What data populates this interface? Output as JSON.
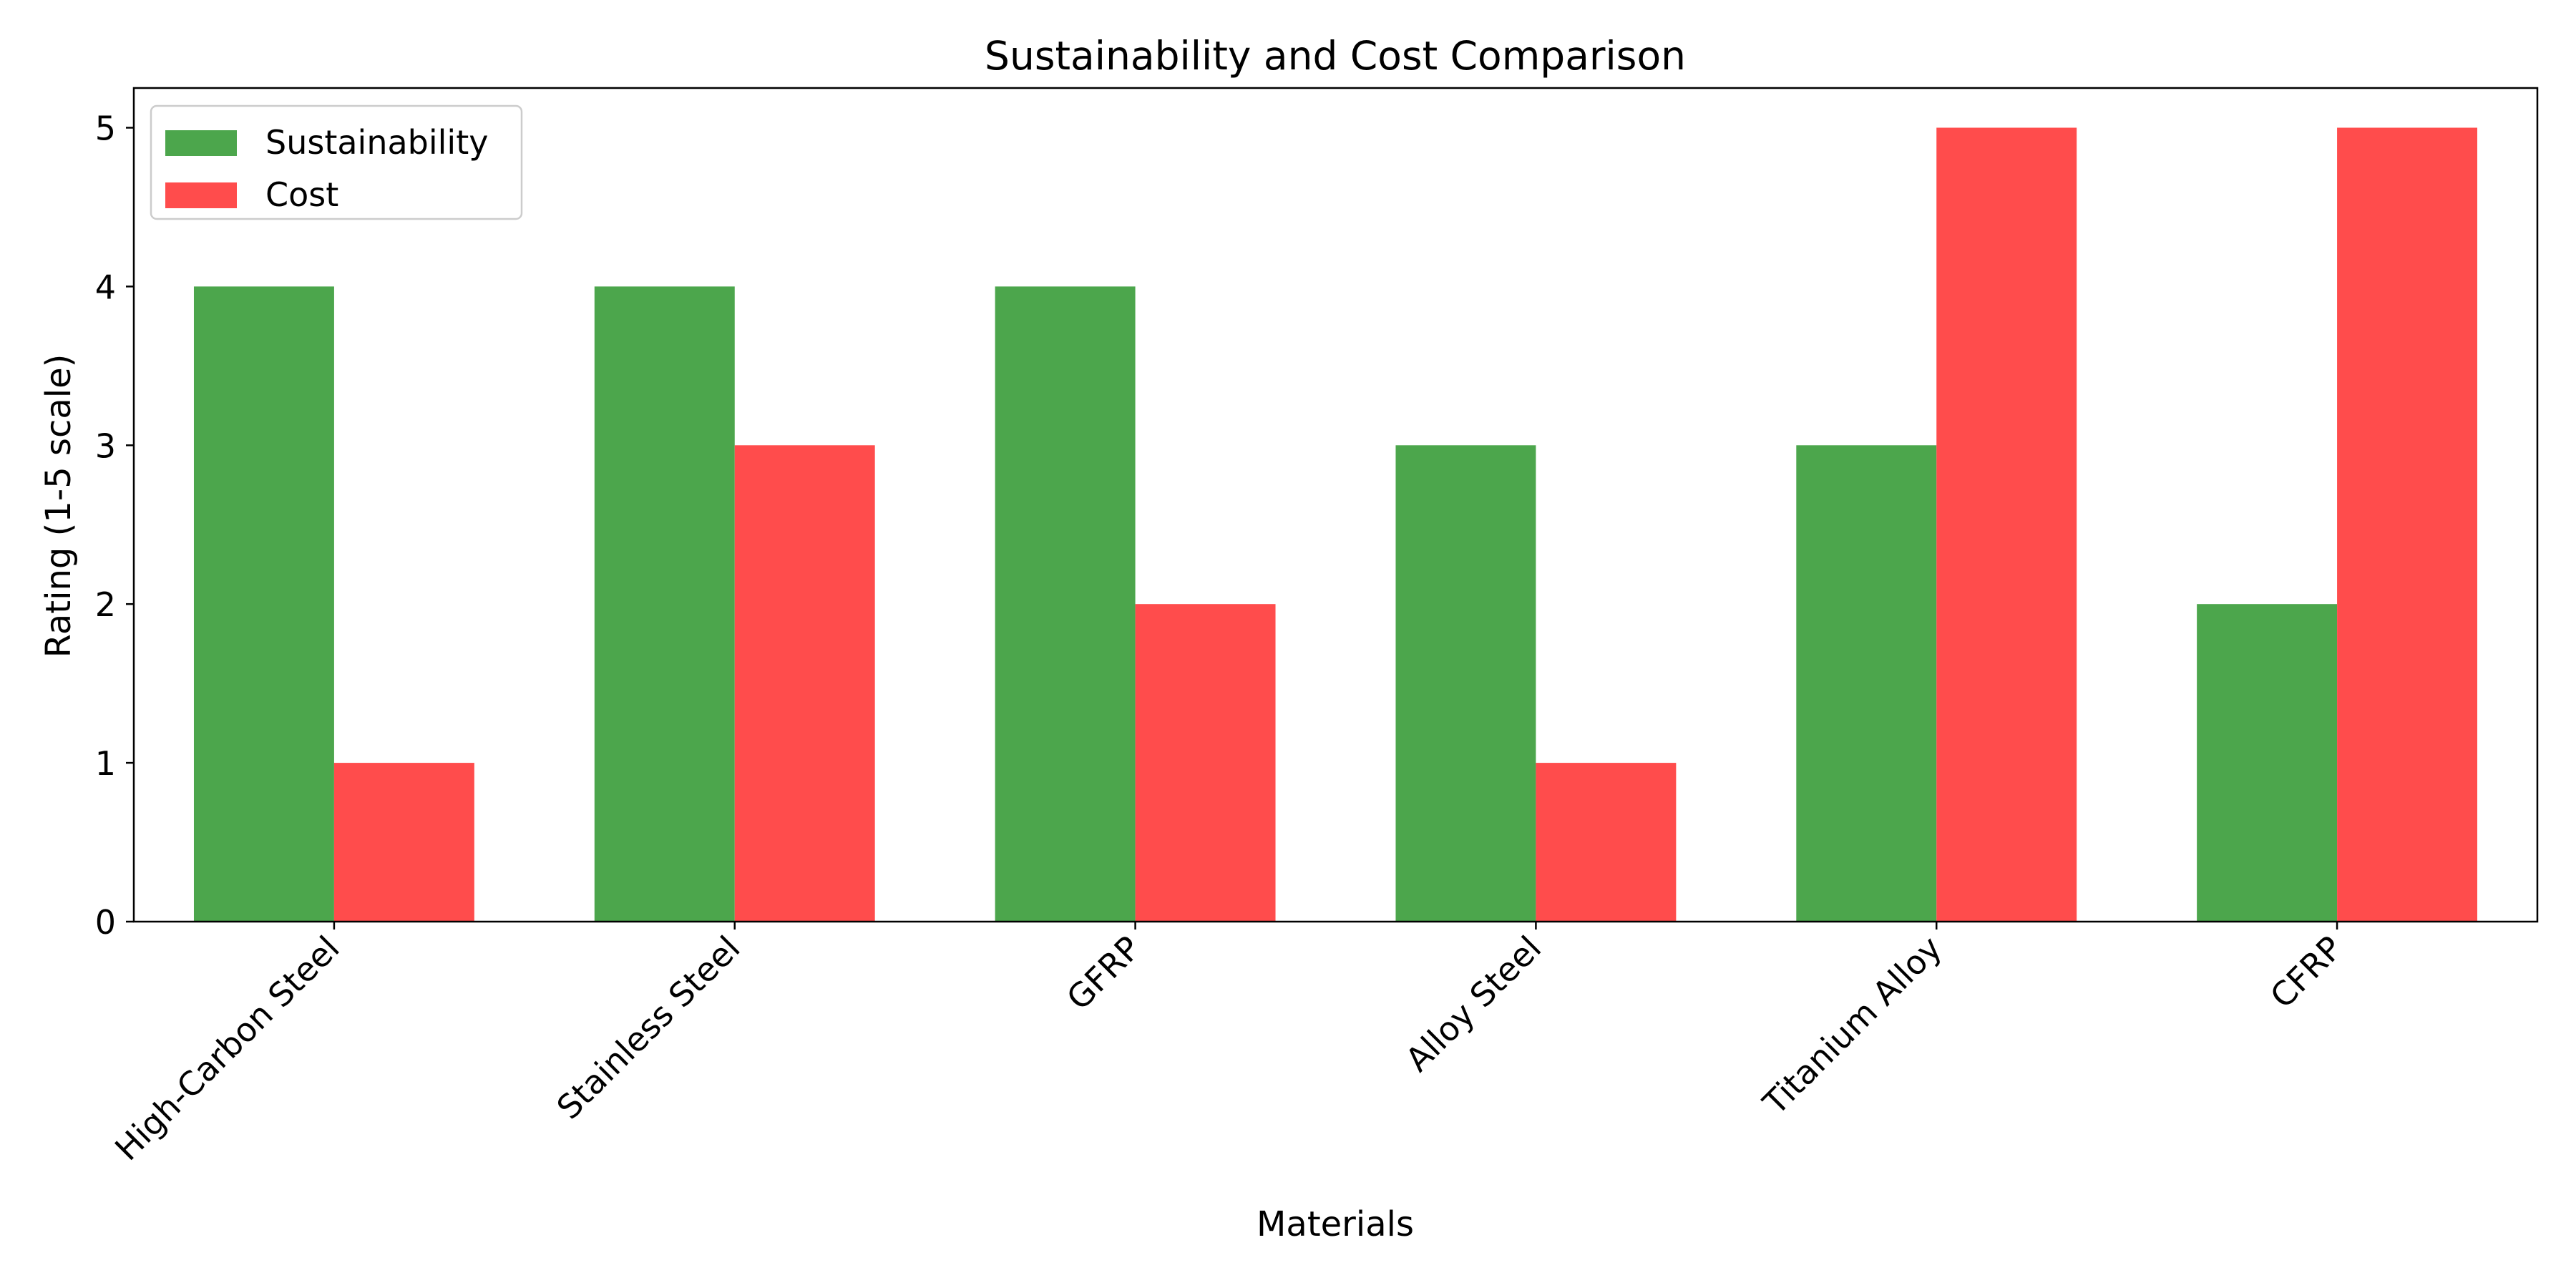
{
  "chart_data": {
    "type": "bar",
    "title": "Sustainability and Cost Comparison",
    "xlabel": "Materials",
    "ylabel": "Rating (1-5 scale)",
    "categories": [
      "High-Carbon Steel",
      "Stainless Steel",
      "GFRP",
      "Alloy Steel",
      "Titanium Alloy",
      "CFRP"
    ],
    "series": [
      {
        "name": "Sustainability",
        "values": [
          4,
          4,
          4,
          3,
          3,
          2
        ],
        "color": "#4ca64c"
      },
      {
        "name": "Cost",
        "values": [
          1,
          3,
          2,
          1,
          5,
          5
        ],
        "color": "#ff4c4c"
      }
    ],
    "ylim": [
      0,
      5.25
    ],
    "yticks": [
      "0",
      "1",
      "2",
      "3",
      "4",
      "5"
    ],
    "grid": false,
    "legend_position": "top-left"
  }
}
